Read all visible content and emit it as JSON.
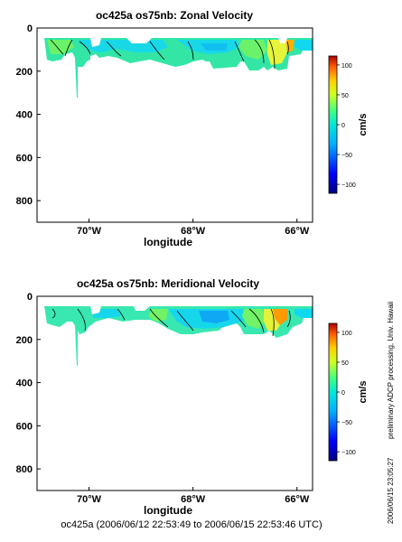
{
  "chart_data": [
    {
      "type": "heatmap",
      "title": "oc425a os75nb: Zonal Velocity",
      "xlabel": "longitude",
      "ylabel": "",
      "x_ticks": [
        "70°W",
        "68°W",
        "66°W"
      ],
      "x_tick_values": [
        -70,
        -68,
        -66
      ],
      "xlim": [
        -71.0,
        -65.7
      ],
      "y_ticks": [
        "0",
        "200",
        "400",
        "600",
        "800"
      ],
      "y_tick_values": [
        0,
        200,
        400,
        600,
        800
      ],
      "ylim": [
        900,
        0
      ],
      "y_inverted": true,
      "colorbar": {
        "label": "cm/s",
        "ticks": [
          "100",
          "50",
          "0",
          "−50",
          "−100"
        ],
        "tick_values": [
          100,
          50,
          0,
          -50,
          -100
        ],
        "range": [
          -115,
          115
        ]
      },
      "section": {
        "depth_top": 50,
        "depth_bottom_typical": 160,
        "max_depth": 330
      },
      "dominant_value_range": [
        -10,
        20
      ],
      "max_value_near_lon": -66.2,
      "max_value_approx": 65
    },
    {
      "type": "heatmap",
      "title": "oc425a os75nb: Meridional Velocity",
      "xlabel": "longitude",
      "ylabel": "",
      "x_ticks": [
        "70°W",
        "68°W",
        "66°W"
      ],
      "x_tick_values": [
        -70,
        -68,
        -66
      ],
      "xlim": [
        -71.0,
        -65.7
      ],
      "y_ticks": [
        "0",
        "200",
        "400",
        "600",
        "800"
      ],
      "y_tick_values": [
        0,
        200,
        400,
        600,
        800
      ],
      "ylim": [
        900,
        0
      ],
      "y_inverted": true,
      "colorbar": {
        "label": "cm/s",
        "ticks": [
          "100",
          "50",
          "0",
          "−50",
          "−100"
        ],
        "tick_values": [
          100,
          50,
          0,
          -50,
          -100
        ],
        "range": [
          -115,
          115
        ]
      },
      "section": {
        "depth_top": 50,
        "depth_bottom_typical": 160,
        "max_depth": 330
      },
      "dominant_value_range": [
        -25,
        20
      ],
      "max_value_near_lon": -66.3,
      "max_value_approx": 65
    }
  ],
  "footer": "oc425a (2006/06/12 22:53:49 to 2006/06/15 22:53:46 UTC)",
  "side_note": "preliminary ADCP processing,  Univ. Hawaii",
  "side_date": "2006/06/15 23:05:27"
}
